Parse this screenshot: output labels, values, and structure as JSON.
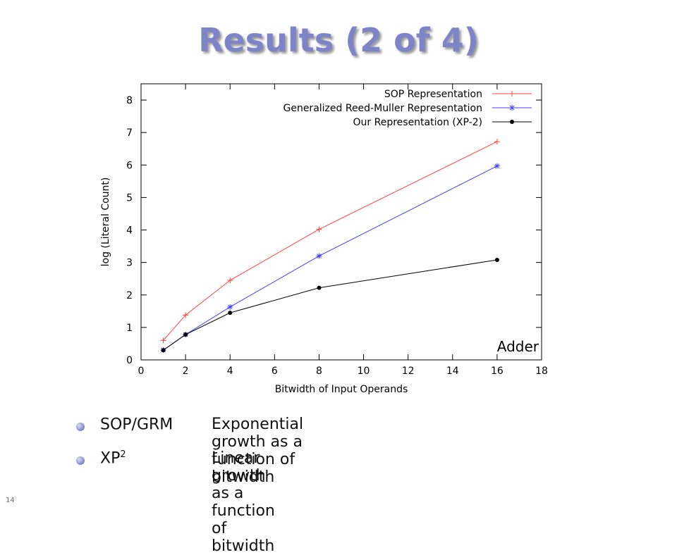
{
  "slide": {
    "title": "Results (2 of 4)",
    "number": "14",
    "bullets": [
      {
        "term": "SOP/GRM",
        "sup": "",
        "desc": "Exponential growth as a function of bitwidth"
      },
      {
        "term": "XP",
        "sup": "2",
        "desc": "Linear growth as a function of bitwidth"
      }
    ]
  },
  "chart_data": {
    "type": "line",
    "title": "",
    "xlabel": "Bitwidth of Input Operands",
    "ylabel": "log (Literal Count)",
    "xlim": [
      0,
      18
    ],
    "ylim": [
      0,
      8.5
    ],
    "xticks": [
      "0",
      "2",
      "4",
      "6",
      "8",
      "10",
      "12",
      "14",
      "16",
      "18"
    ],
    "yticks": [
      "0",
      "1",
      "2",
      "3",
      "4",
      "5",
      "6",
      "7",
      "8"
    ],
    "grid": false,
    "legend_position": "top-right",
    "annotation": "Adder",
    "x": [
      1,
      2,
      4,
      8,
      16
    ],
    "series": [
      {
        "name": "SOP Representation",
        "color": "#ff4040",
        "marker": "plus",
        "values": [
          0.6,
          1.38,
          2.45,
          4.02,
          6.72
        ]
      },
      {
        "name": "Generalized Reed-Muller Representation",
        "color": "#4040ff",
        "marker": "star",
        "values": [
          0.3,
          0.78,
          1.63,
          3.2,
          5.97
        ]
      },
      {
        "name": "Our Representation (XP-2)",
        "color": "#000000",
        "marker": "dot",
        "values": [
          0.3,
          0.78,
          1.45,
          2.22,
          3.08
        ]
      }
    ]
  }
}
